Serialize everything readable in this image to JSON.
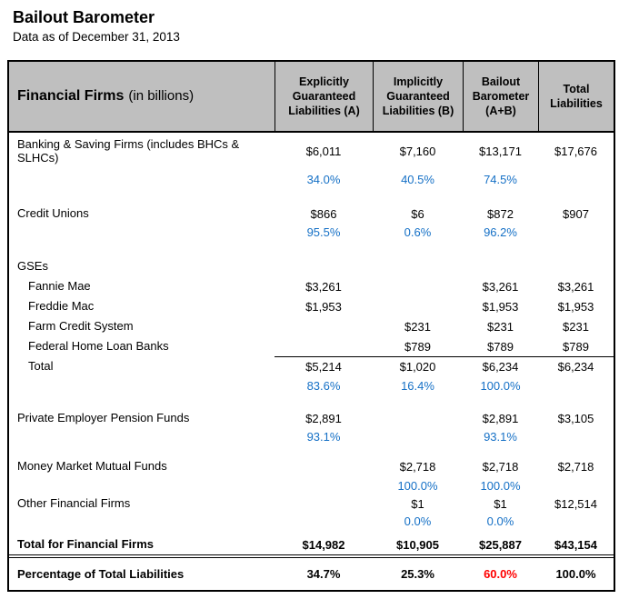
{
  "header": {
    "title": "Bailout Barometer",
    "subtitle": "Data as of December 31, 2013"
  },
  "colors": {
    "percent_blue": "#1570c6",
    "highlight_red": "#ff0000",
    "header_gray": "#bfbfbf"
  },
  "table": {
    "corner": {
      "bold": "Financial Firms",
      "normal": "(in billions)"
    },
    "columns": [
      "Explicitly Guaranteed Liabilities (A)",
      "Implicitly Guaranteed Liabilities (B)",
      "Bailout Barometer (A+B)",
      "Total Liabilities"
    ],
    "rows": [
      {
        "label": "Banking & Saving Firms (includes BHCs & SLHCs)",
        "cells": [
          "$6,011",
          "$7,160",
          "$13,171",
          "$17,676"
        ]
      },
      {
        "label": "",
        "cells": [
          "34.0%",
          "40.5%",
          "74.5%",
          ""
        ]
      },
      {
        "label": "Credit Unions",
        "cells": [
          "$866",
          "$6",
          "$872",
          "$907"
        ]
      },
      {
        "label": "",
        "cells": [
          "95.5%",
          "0.6%",
          "96.2%",
          ""
        ]
      },
      {
        "label": "GSEs",
        "cells": [
          "",
          "",
          "",
          ""
        ]
      },
      {
        "label": "Fannie Mae",
        "cells": [
          "$3,261",
          "",
          "$3,261",
          "$3,261"
        ]
      },
      {
        "label": "Freddie Mac",
        "cells": [
          "$1,953",
          "",
          "$1,953",
          "$1,953"
        ]
      },
      {
        "label": "Farm Credit System",
        "cells": [
          "",
          "$231",
          "$231",
          "$231"
        ]
      },
      {
        "label": "Federal Home Loan Banks",
        "cells": [
          "",
          "$789",
          "$789",
          "$789"
        ]
      },
      {
        "label": "Total",
        "cells": [
          "$5,214",
          "$1,020",
          "$6,234",
          "$6,234"
        ]
      },
      {
        "label": "",
        "cells": [
          "83.6%",
          "16.4%",
          "100.0%",
          ""
        ]
      },
      {
        "label": "Private Employer Pension Funds",
        "cells": [
          "$2,891",
          "",
          "$2,891",
          "$3,105"
        ]
      },
      {
        "label": "",
        "cells": [
          "93.1%",
          "",
          "93.1%",
          ""
        ]
      },
      {
        "label": "Money Market Mutual Funds",
        "cells": [
          "",
          "$2,718",
          "$2,718",
          "$2,718"
        ]
      },
      {
        "label": "",
        "cells": [
          "",
          "100.0%",
          "100.0%",
          ""
        ]
      },
      {
        "label": "Other Financial Firms",
        "cells": [
          "",
          "$1",
          "$1",
          "$12,514"
        ]
      },
      {
        "label": "",
        "cells": [
          "",
          "0.0%",
          "0.0%",
          ""
        ]
      },
      {
        "label": "Total for Financial Firms",
        "cells": [
          "$14,982",
          "$10,905",
          "$25,887",
          "$43,154"
        ]
      }
    ],
    "footer": {
      "label": "Percentage of Total Liabilities",
      "cells": [
        "34.7%",
        "25.3%",
        "60.0%",
        "100.0%"
      ]
    }
  }
}
